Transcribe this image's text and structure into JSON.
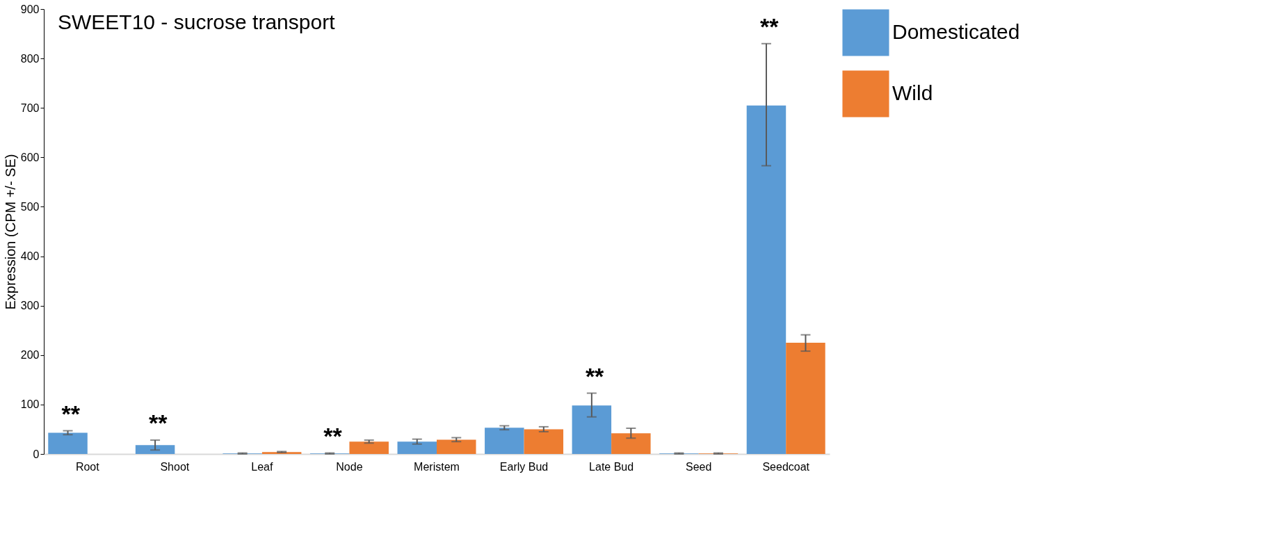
{
  "chart_data": {
    "type": "bar",
    "title": "SWEET10 - sucrose transport",
    "ylabel": "Expression (CPM +/- SE)",
    "categories": [
      "Root",
      "Shoot",
      "Leaf",
      "Node",
      "Meristem",
      "Early Bud",
      "Late Bud",
      "Seed",
      "Seedcoat"
    ],
    "series": [
      {
        "name": "Domesticated",
        "color": "#5b9bd5",
        "values": [
          43,
          18,
          1,
          1,
          25,
          53,
          98,
          1,
          705
        ],
        "errors": [
          4,
          10,
          1,
          1,
          5,
          4,
          [
            75,
            123
          ],
          1,
          [
            583,
            830
          ]
        ]
      },
      {
        "name": "Wild",
        "color": "#ed7d31",
        "values": [
          0,
          0,
          4,
          25,
          29,
          50,
          42,
          1,
          225
        ],
        "errors": [
          null,
          null,
          1,
          3,
          4,
          5,
          10,
          1,
          [
            208,
            241
          ]
        ]
      }
    ],
    "ylim": [
      0,
      900
    ],
    "yticks": [
      0,
      100,
      200,
      300,
      400,
      500,
      600,
      700,
      800,
      900
    ],
    "grid": false,
    "legend": "right",
    "annotations": [
      {
        "text": "**",
        "x": "Root",
        "y": 43
      },
      {
        "text": "**",
        "x": "Shoot",
        "y": 18
      },
      {
        "text": "**",
        "x": "Node",
        "y": 1
      },
      {
        "text": "**",
        "x": "Late Bud",
        "y": 98
      },
      {
        "text": "**",
        "x": "Seedcoat",
        "y": 705
      }
    ]
  }
}
